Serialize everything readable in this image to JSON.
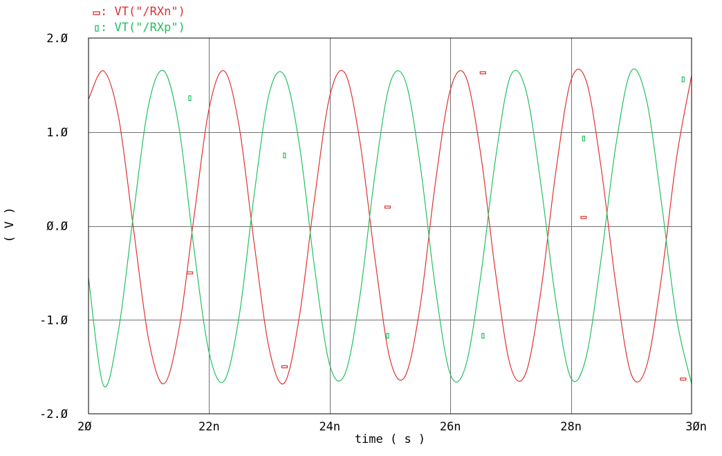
{
  "chart_data": {
    "type": "line",
    "xlabel": "time ( s )",
    "ylabel": "( V )",
    "xlim": [
      2e-08,
      3e-08
    ],
    "ylim": [
      -2.0,
      2.0
    ],
    "x_ticks": [
      2e-08,
      2.2e-08,
      2.4e-08,
      2.6e-08,
      2.8e-08,
      3e-08
    ],
    "x_tick_labels": [
      "2Ø",
      "22n",
      "24n",
      "26n",
      "28n",
      "3Øn"
    ],
    "y_ticks": [
      -2.0,
      -1.0,
      0.0,
      1.0,
      2.0
    ],
    "y_tick_labels": [
      "-2.Ø",
      "-1.Ø",
      "Ø.Ø",
      "1.Ø",
      "2.Ø"
    ],
    "grid": true,
    "legend_position": "top-left",
    "series": [
      {
        "name": "VT(\"/RXn\")",
        "legend_label": ": VT(\"/RXn\")",
        "color": "#e03030",
        "marker": "rect-horizontal",
        "x": [
          2e-08,
          2.025e-08,
          2.05e-08,
          2.075e-08,
          2.1e-08,
          2.125e-08,
          2.15e-08,
          2.175e-08,
          2.2e-08,
          2.225e-08,
          2.25e-08,
          2.275e-08,
          2.3e-08,
          2.325e-08,
          2.35e-08,
          2.375e-08,
          2.4e-08,
          2.425e-08,
          2.45e-08,
          2.475e-08,
          2.5e-08,
          2.525e-08,
          2.55e-08,
          2.575e-08,
          2.6e-08,
          2.625e-08,
          2.65e-08,
          2.675e-08,
          2.7e-08,
          2.725e-08,
          2.75e-08,
          2.775e-08,
          2.8e-08,
          2.825e-08,
          2.85e-08,
          2.875e-08,
          2.9e-08,
          2.925e-08,
          2.95e-08,
          2.975e-08,
          3e-08
        ],
        "y": [
          1.35,
          1.65,
          1.15,
          -0.05,
          -1.22,
          -1.68,
          -1.1,
          0.1,
          1.25,
          1.65,
          1.05,
          -0.2,
          -1.32,
          -1.67,
          -0.95,
          0.3,
          1.38,
          1.63,
          0.9,
          -0.35,
          -1.42,
          -1.6,
          -0.85,
          0.45,
          1.45,
          1.6,
          0.78,
          -0.5,
          -1.5,
          -1.57,
          -0.7,
          0.58,
          1.55,
          1.55,
          0.62,
          -0.65,
          -1.58,
          -1.5,
          -0.55,
          0.72,
          1.6
        ]
      },
      {
        "name": "VT(\"/RXp\")",
        "legend_label": ": VT(\"/RXp\")",
        "color": "#20c060",
        "marker": "rect-vertical",
        "x": [
          2e-08,
          2.025e-08,
          2.05e-08,
          2.075e-08,
          2.1e-08,
          2.125e-08,
          2.15e-08,
          2.175e-08,
          2.2e-08,
          2.225e-08,
          2.25e-08,
          2.275e-08,
          2.3e-08,
          2.325e-08,
          2.35e-08,
          2.375e-08,
          2.4e-08,
          2.425e-08,
          2.45e-08,
          2.475e-08,
          2.5e-08,
          2.525e-08,
          2.55e-08,
          2.575e-08,
          2.6e-08,
          2.625e-08,
          2.65e-08,
          2.675e-08,
          2.7e-08,
          2.725e-08,
          2.75e-08,
          2.775e-08,
          2.8e-08,
          2.825e-08,
          2.85e-08,
          2.875e-08,
          2.9e-08,
          2.925e-08,
          2.95e-08,
          2.975e-08,
          3e-08
        ],
        "y": [
          -0.55,
          -1.7,
          -1.1,
          0.15,
          1.3,
          1.65,
          1.05,
          -0.25,
          -1.35,
          -1.65,
          -0.95,
          0.35,
          1.42,
          1.6,
          0.85,
          -0.45,
          -1.48,
          -1.58,
          -0.75,
          0.55,
          1.52,
          1.55,
          0.65,
          -0.65,
          -1.58,
          -1.5,
          -0.55,
          0.72,
          1.6,
          1.45,
          0.45,
          -0.8,
          -1.62,
          -1.4,
          -0.35,
          0.88,
          1.65,
          1.35,
          0.25,
          -0.98,
          -1.68
        ]
      }
    ],
    "markers": [
      {
        "series": 0,
        "x": 2.168e-08,
        "y": -0.5
      },
      {
        "series": 0,
        "x": 2.325e-08,
        "y": -1.5
      },
      {
        "series": 0,
        "x": 2.496e-08,
        "y": 0.2
      },
      {
        "series": 0,
        "x": 2.654e-08,
        "y": 1.63
      },
      {
        "series": 0,
        "x": 2.821e-08,
        "y": 0.09
      },
      {
        "series": 0,
        "x": 2.986e-08,
        "y": -1.63
      },
      {
        "series": 1,
        "x": 2.168e-08,
        "y": 1.36
      },
      {
        "series": 1,
        "x": 2.325e-08,
        "y": 0.75
      },
      {
        "series": 1,
        "x": 2.496e-08,
        "y": -1.17
      },
      {
        "series": 1,
        "x": 2.654e-08,
        "y": -1.17
      },
      {
        "series": 1,
        "x": 2.821e-08,
        "y": 0.93
      },
      {
        "series": 1,
        "x": 2.986e-08,
        "y": 1.56
      }
    ]
  }
}
